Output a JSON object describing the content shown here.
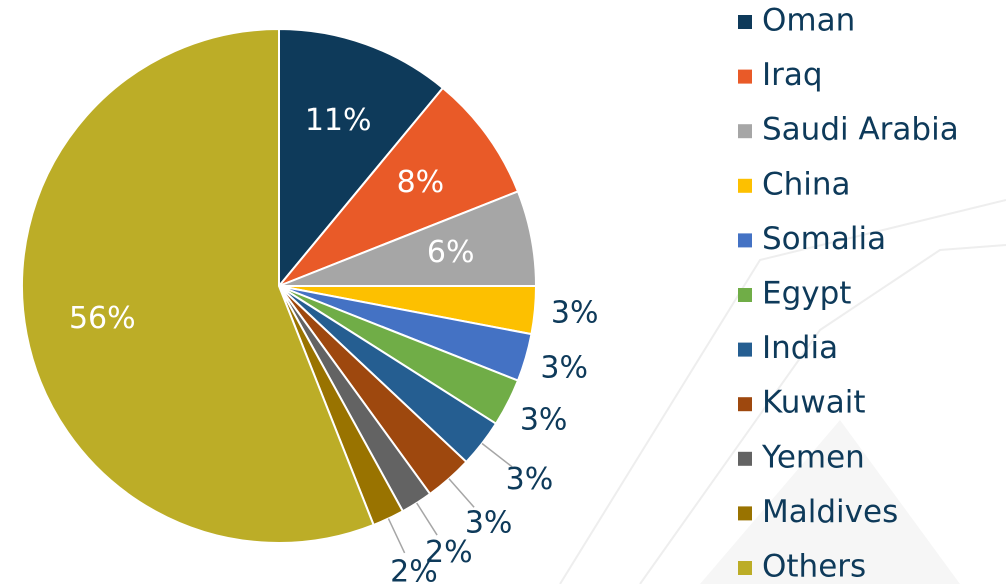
{
  "chart_data": {
    "type": "pie",
    "categories": [
      "Oman",
      "Iraq",
      "Saudi Arabia",
      "China",
      "Somalia",
      "Egypt",
      "India",
      "Kuwait",
      "Yemen",
      "Maldives",
      "Others"
    ],
    "values": [
      11,
      8,
      6,
      3,
      3,
      3,
      3,
      3,
      2,
      2,
      56
    ],
    "value_labels": [
      "11%",
      "8%",
      "6%",
      "3%",
      "3%",
      "3%",
      "3%",
      "3%",
      "2%",
      "2%",
      "56%"
    ],
    "colors": [
      "#0e3a5a",
      "#e95a28",
      "#a6a6a6",
      "#fdc000",
      "#4472c4",
      "#70ad47",
      "#255e91",
      "#9e480e",
      "#636363",
      "#997300",
      "#bcad27"
    ],
    "legend": "right"
  }
}
